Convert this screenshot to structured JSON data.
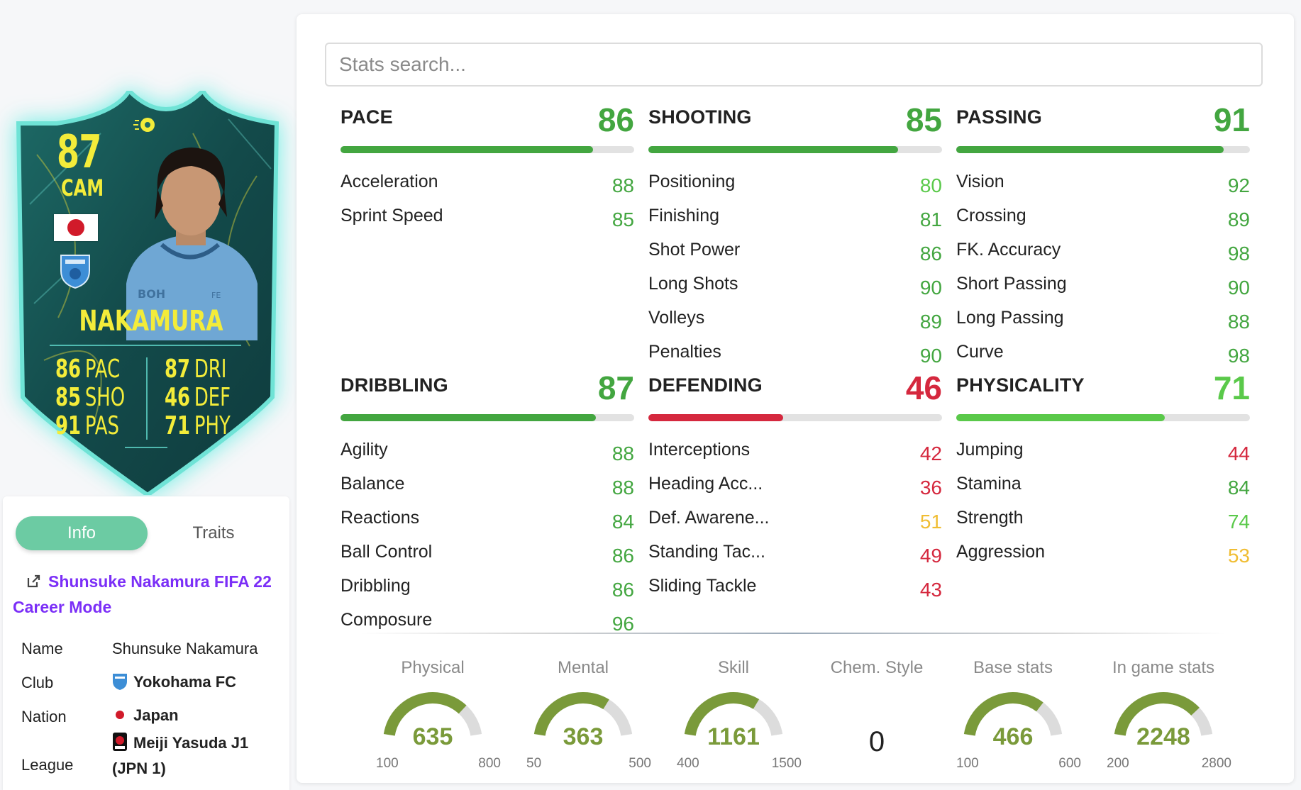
{
  "card": {
    "rating": "87",
    "position": "CAM",
    "name": "NAKAMURA",
    "stats": [
      {
        "value": "86",
        "label": "PAC"
      },
      {
        "value": "85",
        "label": "SHO"
      },
      {
        "value": "91",
        "label": "PAS"
      },
      {
        "value": "87",
        "label": "DRI"
      },
      {
        "value": "46",
        "label": "DEF"
      },
      {
        "value": "71",
        "label": "PHY"
      }
    ],
    "colors": {
      "text": "#f3ec3a",
      "body": "#1f5f5c",
      "border": "#6fe3d6"
    }
  },
  "tabs": {
    "info": "Info",
    "traits": "Traits"
  },
  "info": {
    "link_text": "Shunsuke Nakamura FIFA 22 Career Mode",
    "rows": [
      {
        "label": "Name",
        "value": "Shunsuke Nakamura"
      },
      {
        "label": "Club",
        "value": "Yokohama FC"
      },
      {
        "label": "Nation",
        "value": "Japan"
      },
      {
        "label": "League",
        "value": "Meiji Yasuda J1 (JPN 1)"
      }
    ]
  },
  "search": {
    "placeholder": "Stats search..."
  },
  "colors": {
    "high": "#43a640",
    "good": "#5ac94a",
    "mid": "#f0bd33",
    "low": "#d5283e",
    "gauge": "#7a9a3a",
    "tab_active": "#6ccba3",
    "link": "#7b2ff7"
  },
  "categories": [
    {
      "name": "PACE",
      "value": 86,
      "color": "#43a640",
      "stats": [
        {
          "name": "Acceleration",
          "value": 88,
          "color": "#43a640"
        },
        {
          "name": "Sprint Speed",
          "value": 85,
          "color": "#43a640"
        }
      ]
    },
    {
      "name": "SHOOTING",
      "value": 85,
      "color": "#43a640",
      "stats": [
        {
          "name": "Positioning",
          "value": 80,
          "color": "#5ac94a"
        },
        {
          "name": "Finishing",
          "value": 81,
          "color": "#43a640"
        },
        {
          "name": "Shot Power",
          "value": 86,
          "color": "#43a640"
        },
        {
          "name": "Long Shots",
          "value": 90,
          "color": "#43a640"
        },
        {
          "name": "Volleys",
          "value": 89,
          "color": "#43a640"
        },
        {
          "name": "Penalties",
          "value": 90,
          "color": "#43a640"
        }
      ]
    },
    {
      "name": "PASSING",
      "value": 91,
      "color": "#43a640",
      "stats": [
        {
          "name": "Vision",
          "value": 92,
          "color": "#43a640"
        },
        {
          "name": "Crossing",
          "value": 89,
          "color": "#43a640"
        },
        {
          "name": "FK. Accuracy",
          "value": 98,
          "color": "#43a640"
        },
        {
          "name": "Short Passing",
          "value": 90,
          "color": "#43a640"
        },
        {
          "name": "Long Passing",
          "value": 88,
          "color": "#43a640"
        },
        {
          "name": "Curve",
          "value": 98,
          "color": "#43a640"
        }
      ]
    },
    {
      "name": "DRIBBLING",
      "value": 87,
      "color": "#43a640",
      "stats": [
        {
          "name": "Agility",
          "value": 88,
          "color": "#43a640"
        },
        {
          "name": "Balance",
          "value": 88,
          "color": "#43a640"
        },
        {
          "name": "Reactions",
          "value": 84,
          "color": "#43a640"
        },
        {
          "name": "Ball Control",
          "value": 86,
          "color": "#43a640"
        },
        {
          "name": "Dribbling",
          "value": 86,
          "color": "#43a640"
        },
        {
          "name": "Composure",
          "value": 96,
          "color": "#43a640"
        }
      ]
    },
    {
      "name": "DEFENDING",
      "value": 46,
      "color": "#d5283e",
      "stats": [
        {
          "name": "Interceptions",
          "value": 42,
          "color": "#d5283e"
        },
        {
          "name": "Heading Acc...",
          "value": 36,
          "color": "#d5283e"
        },
        {
          "name": "Def. Awarene...",
          "value": 51,
          "color": "#f0bd33"
        },
        {
          "name": "Standing Tac...",
          "value": 49,
          "color": "#d5283e"
        },
        {
          "name": "Sliding Tackle",
          "value": 43,
          "color": "#d5283e"
        }
      ]
    },
    {
      "name": "PHYSICALITY",
      "value": 71,
      "color": "#5ac94a",
      "stats": [
        {
          "name": "Jumping",
          "value": 44,
          "color": "#d5283e"
        },
        {
          "name": "Stamina",
          "value": 84,
          "color": "#43a640"
        },
        {
          "name": "Strength",
          "value": 74,
          "color": "#5ac94a"
        },
        {
          "name": "Aggression",
          "value": 53,
          "color": "#f0bd33"
        }
      ]
    }
  ],
  "gauges": [
    {
      "title": "Physical",
      "value": 635,
      "min": 100,
      "max": 800
    },
    {
      "title": "Mental",
      "value": 363,
      "min": 50,
      "max": 500
    },
    {
      "title": "Skill",
      "value": 1161,
      "min": 400,
      "max": 1500
    },
    {
      "title": "Chem. Style",
      "value": "0"
    },
    {
      "title": "Base stats",
      "value": 466,
      "min": 100,
      "max": 600
    },
    {
      "title": "In game stats",
      "value": 2248,
      "min": 200,
      "max": 2800
    }
  ]
}
